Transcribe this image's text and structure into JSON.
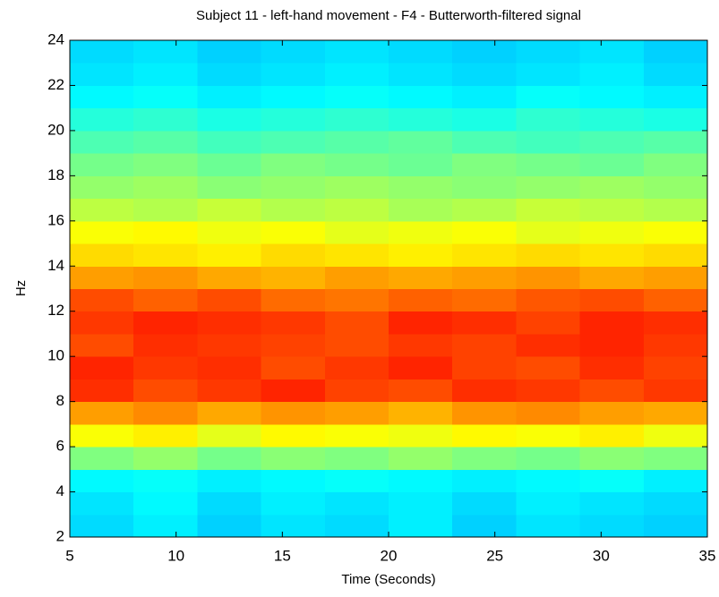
{
  "chart_data": {
    "type": "heatmap",
    "title": "Subject 11 - left-hand movement - F4 - Butterworth-filtered signal",
    "xlabel": "Time (Seconds)",
    "ylabel": "Hz",
    "colormap": "jet",
    "zlim": [
      0,
      1
    ],
    "xbins": [
      5,
      8,
      11,
      14,
      17,
      20,
      23,
      26,
      29,
      32,
      35
    ],
    "ybins": [
      2,
      3,
      4,
      5,
      6,
      7,
      8,
      9,
      10,
      11,
      12,
      13,
      14,
      15,
      16,
      17,
      18,
      19,
      20,
      21,
      22,
      23,
      24
    ],
    "z": [
      [
        0.34,
        0.36,
        0.33,
        0.35,
        0.34,
        0.36,
        0.33,
        0.35,
        0.34,
        0.33
      ],
      [
        0.35,
        0.37,
        0.34,
        0.36,
        0.35,
        0.36,
        0.34,
        0.36,
        0.35,
        0.34
      ],
      [
        0.37,
        0.38,
        0.36,
        0.37,
        0.38,
        0.37,
        0.36,
        0.37,
        0.38,
        0.36
      ],
      [
        0.5,
        0.52,
        0.49,
        0.51,
        0.5,
        0.52,
        0.5,
        0.49,
        0.51,
        0.5
      ],
      [
        0.62,
        0.64,
        0.6,
        0.63,
        0.62,
        0.61,
        0.63,
        0.62,
        0.64,
        0.61
      ],
      [
        0.72,
        0.74,
        0.71,
        0.73,
        0.72,
        0.7,
        0.73,
        0.74,
        0.72,
        0.71
      ],
      [
        0.83,
        0.8,
        0.82,
        0.84,
        0.81,
        0.8,
        0.83,
        0.82,
        0.8,
        0.82
      ],
      [
        0.84,
        0.82,
        0.83,
        0.8,
        0.82,
        0.84,
        0.81,
        0.8,
        0.83,
        0.81
      ],
      [
        0.8,
        0.83,
        0.82,
        0.81,
        0.8,
        0.82,
        0.81,
        0.83,
        0.84,
        0.82
      ],
      [
        0.82,
        0.84,
        0.83,
        0.82,
        0.8,
        0.84,
        0.83,
        0.81,
        0.84,
        0.83
      ],
      [
        0.8,
        0.78,
        0.8,
        0.77,
        0.76,
        0.78,
        0.77,
        0.79,
        0.8,
        0.78
      ],
      [
        0.72,
        0.73,
        0.71,
        0.7,
        0.72,
        0.71,
        0.72,
        0.73,
        0.71,
        0.72
      ],
      [
        0.66,
        0.65,
        0.64,
        0.66,
        0.65,
        0.64,
        0.65,
        0.66,
        0.65,
        0.66
      ],
      [
        0.62,
        0.63,
        0.61,
        0.62,
        0.6,
        0.61,
        0.62,
        0.6,
        0.61,
        0.62
      ],
      [
        0.56,
        0.55,
        0.57,
        0.55,
        0.56,
        0.54,
        0.55,
        0.57,
        0.56,
        0.55
      ],
      [
        0.52,
        0.53,
        0.51,
        0.52,
        0.53,
        0.52,
        0.51,
        0.52,
        0.53,
        0.52
      ],
      [
        0.49,
        0.5,
        0.48,
        0.5,
        0.49,
        0.48,
        0.5,
        0.49,
        0.48,
        0.5
      ],
      [
        0.45,
        0.46,
        0.44,
        0.45,
        0.46,
        0.47,
        0.45,
        0.44,
        0.45,
        0.46
      ],
      [
        0.41,
        0.42,
        0.4,
        0.41,
        0.42,
        0.41,
        0.4,
        0.42,
        0.41,
        0.4
      ],
      [
        0.37,
        0.38,
        0.36,
        0.37,
        0.38,
        0.37,
        0.36,
        0.38,
        0.37,
        0.36
      ],
      [
        0.35,
        0.36,
        0.34,
        0.35,
        0.36,
        0.35,
        0.34,
        0.35,
        0.36,
        0.34
      ],
      [
        0.34,
        0.35,
        0.33,
        0.34,
        0.35,
        0.34,
        0.33,
        0.34,
        0.35,
        0.33
      ]
    ],
    "xlim": [
      5,
      35
    ],
    "xticks": [
      5,
      10,
      15,
      20,
      25,
      30,
      35
    ],
    "ylim": [
      2,
      24
    ],
    "yticks": [
      2,
      4,
      6,
      8,
      10,
      12,
      14,
      16,
      18,
      20,
      22,
      24
    ]
  }
}
